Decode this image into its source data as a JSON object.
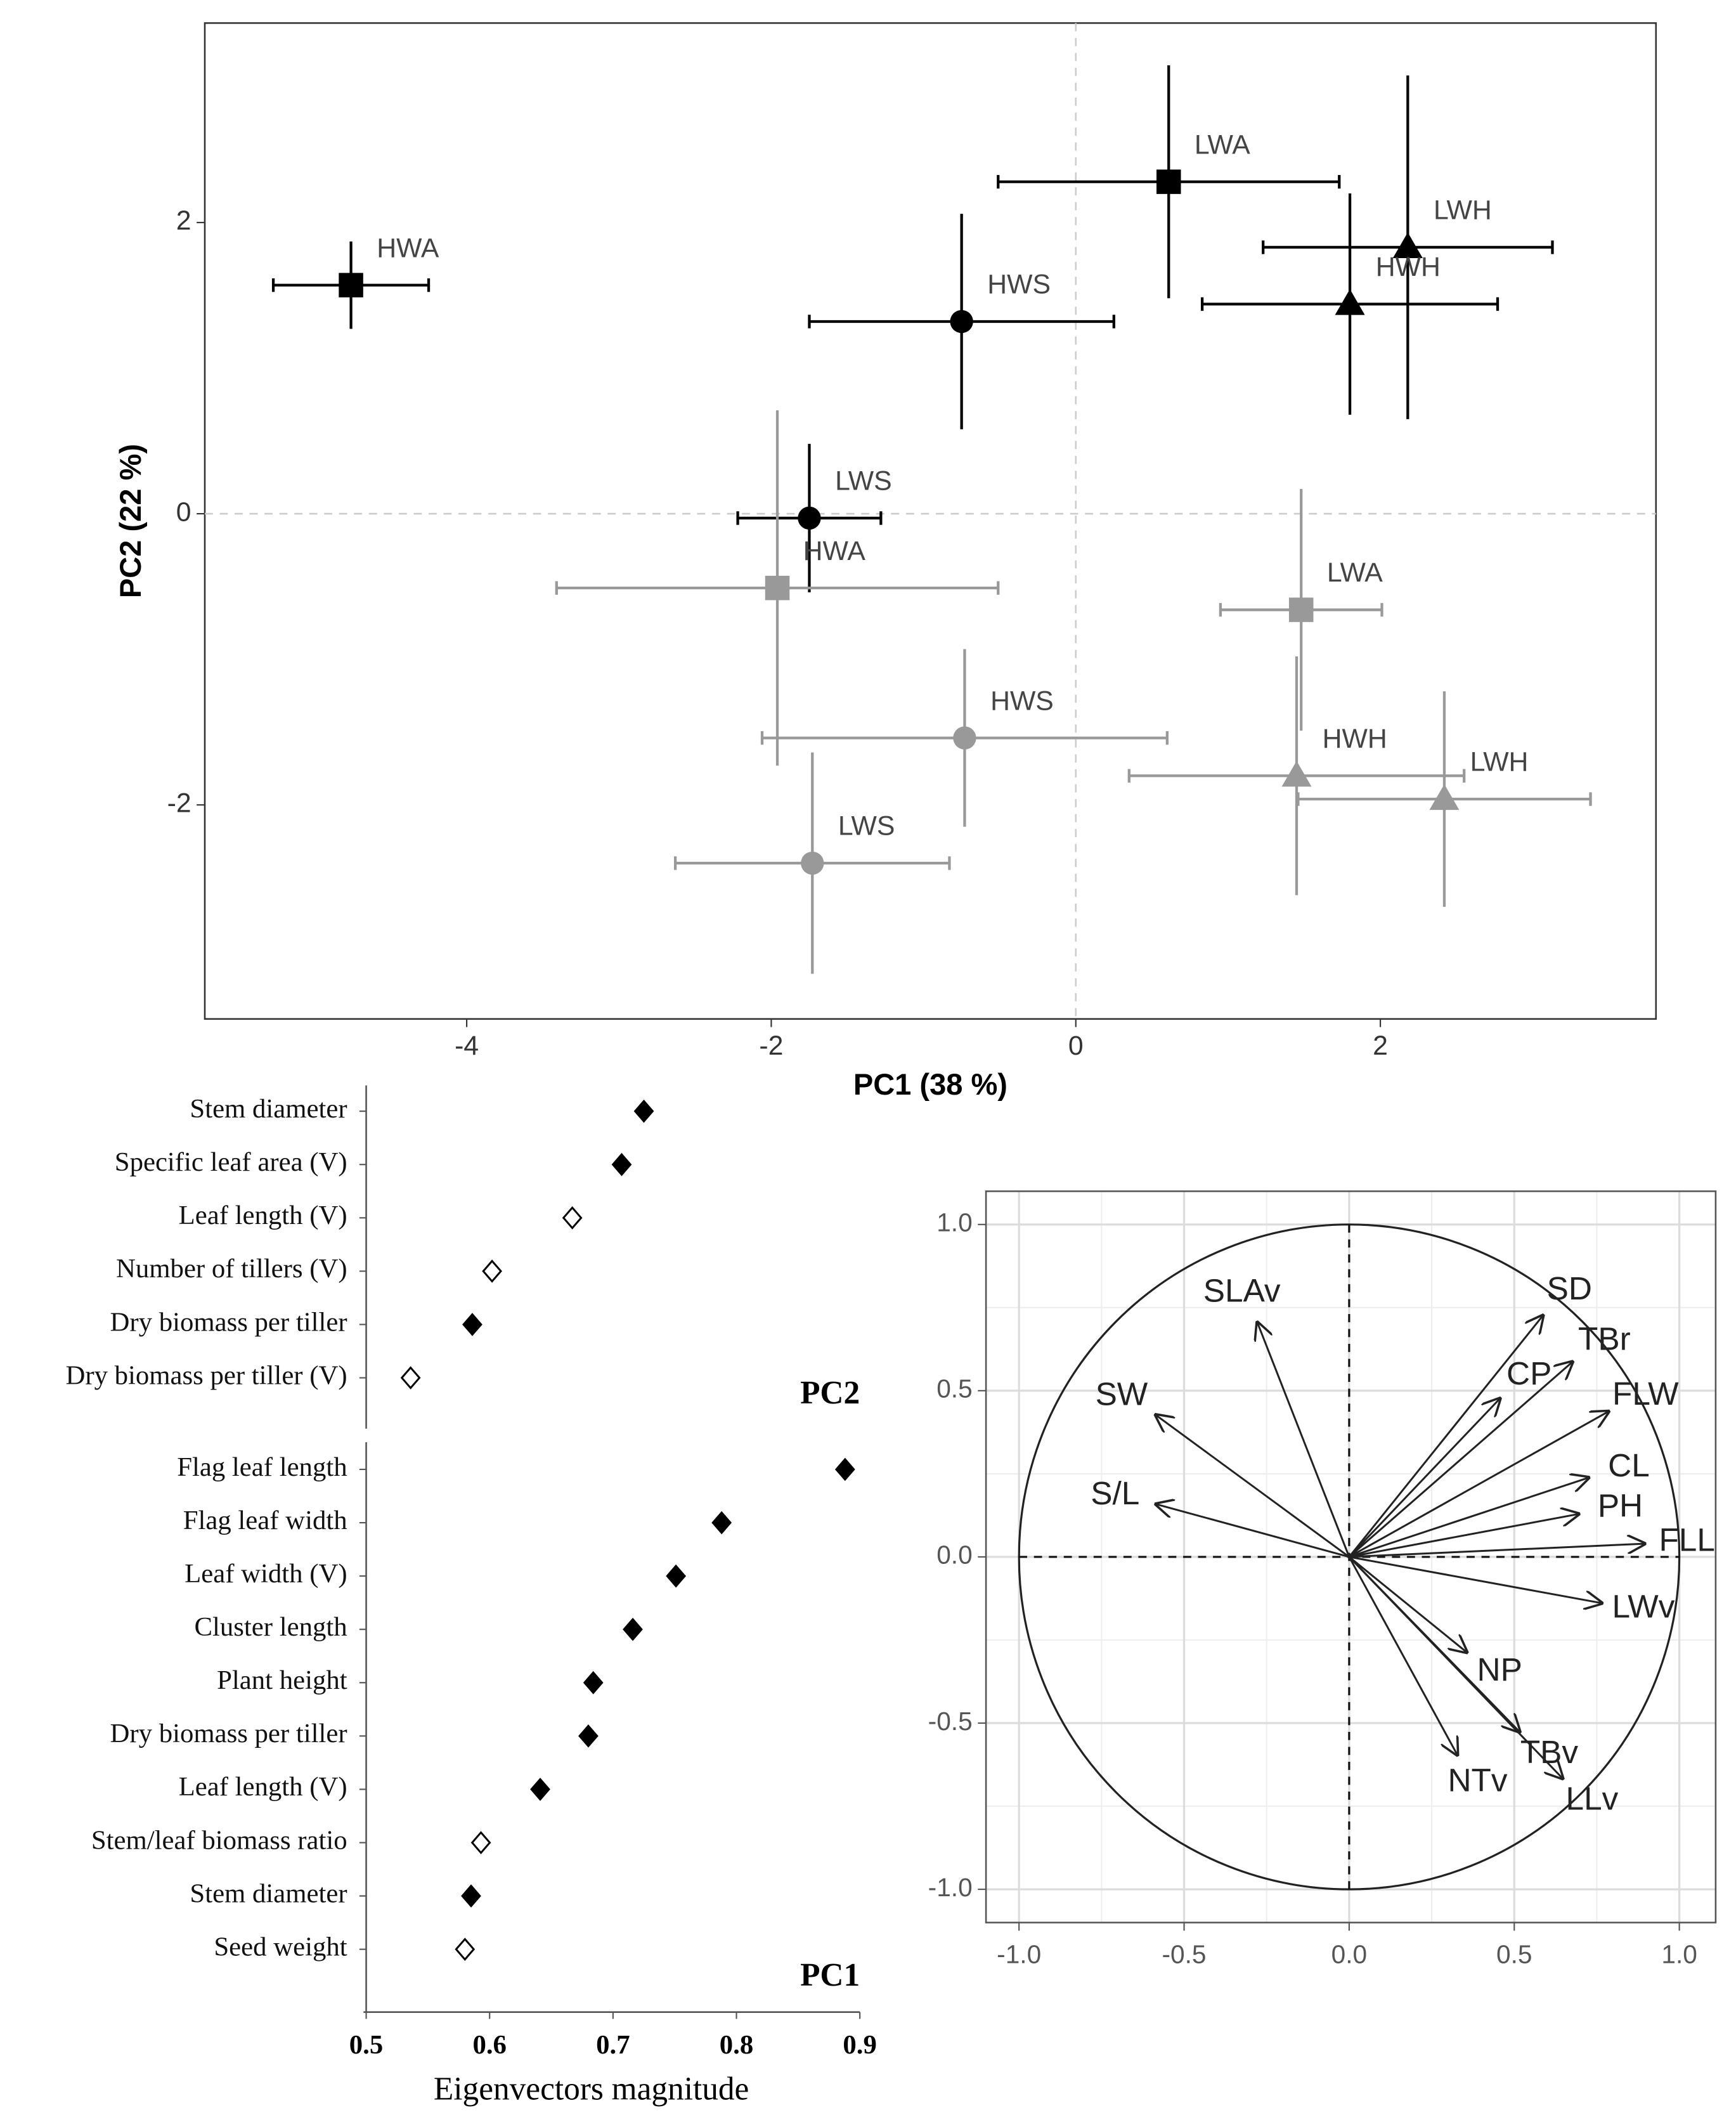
{
  "chart_data": [
    {
      "type": "scatter",
      "xlabel": "PC1 (38 %)",
      "ylabel": "PC2 (22 %)",
      "xlim": [
        -5.72,
        3.81
      ],
      "ylim": [
        -3.47,
        3.37
      ],
      "xticks": [
        -4,
        -2,
        0,
        2
      ],
      "yticks": [
        -2,
        0,
        2
      ],
      "vline": 0,
      "hline": 0,
      "series": [
        {
          "color": "#000000",
          "points": [
            {
              "label": "HWA",
              "shape": "square",
              "x": -4.76,
              "y": 1.57,
              "xerr": 0.51,
              "yerr": 0.3
            },
            {
              "label": "HWS",
              "shape": "circle",
              "x": -0.75,
              "y": 1.32,
              "xerr": 1.0,
              "yerr": 0.74
            },
            {
              "label": "LWA",
              "shape": "square",
              "x": 0.61,
              "y": 2.28,
              "xerr": 1.12,
              "yerr": 0.8
            },
            {
              "label": "LWH",
              "shape": "triangle",
              "x": 2.18,
              "y": 1.83,
              "xerr": 0.95,
              "yerr": 1.18
            },
            {
              "label": "HWH",
              "shape": "triangle",
              "x": 1.8,
              "y": 1.44,
              "xerr": 0.97,
              "yerr": 0.76
            },
            {
              "label": "LWS",
              "shape": "circle",
              "x": -1.75,
              "y": -0.03,
              "xerr": 0.47,
              "yerr": 0.51
            }
          ]
        },
        {
          "color": "#999999",
          "points": [
            {
              "label": "HWA",
              "shape": "square",
              "x": -1.96,
              "y": -0.51,
              "xerr": 1.45,
              "yerr": 1.22
            },
            {
              "label": "LWA",
              "shape": "square",
              "x": 1.48,
              "y": -0.66,
              "xerr": 0.53,
              "yerr": 0.83
            },
            {
              "label": "HWS",
              "shape": "circle",
              "x": -0.73,
              "y": -1.54,
              "xerr": 1.33,
              "yerr": 0.61
            },
            {
              "label": "HWH",
              "shape": "triangle",
              "x": 1.45,
              "y": -1.8,
              "xerr": 1.1,
              "yerr": 0.82
            },
            {
              "label": "LWH",
              "shape": "triangle",
              "x": 2.42,
              "y": -1.96,
              "xerr": 0.96,
              "yerr": 0.74
            },
            {
              "label": "LWS",
              "shape": "circle",
              "x": -1.73,
              "y": -2.4,
              "xerr": 0.9,
              "yerr": 0.76
            }
          ]
        }
      ]
    },
    {
      "type": "dot",
      "xlabel": "Eigenvectors magnitude",
      "xlim": [
        0.5,
        0.9
      ],
      "xticks": [
        0.5,
        0.6,
        0.7,
        0.8,
        0.9
      ],
      "panels": [
        {
          "label": "PC2",
          "categories": [
            "Stem diameter",
            "Specific leaf area (V)",
            "Leaf length (V)",
            "Number of tillers (V)",
            "Dry biomass per tiller",
            "Dry biomass per tiller (V)"
          ],
          "values": [
            0.725,
            0.707,
            0.667,
            0.602,
            0.586,
            0.536
          ],
          "filled": [
            true,
            true,
            false,
            false,
            true,
            false
          ]
        },
        {
          "label": "PC1",
          "categories": [
            "Flag leaf length",
            "Flag leaf width",
            "Leaf width (V)",
            "Cluster length",
            "Plant height",
            "Dry biomass per tiller",
            "Leaf length (V)",
            "Stem/leaf biomass ratio",
            "Stem diameter",
            "Seed weight"
          ],
          "values": [
            0.888,
            0.788,
            0.751,
            0.716,
            0.684,
            0.68,
            0.641,
            0.593,
            0.585,
            0.58
          ],
          "filled": [
            true,
            true,
            true,
            true,
            true,
            true,
            true,
            false,
            true,
            false
          ]
        }
      ]
    },
    {
      "type": "arrows",
      "xlim": [
        -1.1,
        1.11
      ],
      "ylim": [
        -1.1,
        1.1
      ],
      "xticks": [
        {
          "value": -1,
          "label": "-1.0"
        },
        {
          "value": -0.5,
          "label": "-0.5"
        },
        {
          "value": 0,
          "label": "0.0"
        },
        {
          "value": 0.5,
          "label": "0.5"
        },
        {
          "value": 1,
          "label": "1.0"
        }
      ],
      "yticks": [
        {
          "value": -1,
          "label": "-1.0"
        },
        {
          "value": -0.5,
          "label": "-0.5"
        },
        {
          "value": 0,
          "label": "0.0"
        },
        {
          "value": 0.5,
          "label": "0.5"
        },
        {
          "value": 1,
          "label": "1.0"
        }
      ],
      "circle": 1,
      "vline": 0,
      "hline": 0,
      "grid": true,
      "arrows": [
        {
          "label": "SD",
          "x": 0.59,
          "y": 0.73
        },
        {
          "label": "TBr",
          "x": 0.68,
          "y": 0.59
        },
        {
          "label": "FLW",
          "x": 0.79,
          "y": 0.44
        },
        {
          "label": "CP",
          "x": 0.46,
          "y": 0.48
        },
        {
          "label": "CL",
          "x": 0.73,
          "y": 0.24
        },
        {
          "label": "PH",
          "x": 0.7,
          "y": 0.13
        },
        {
          "label": "FLL",
          "x": 0.9,
          "y": 0.04
        },
        {
          "label": "SLAv",
          "x": -0.28,
          "y": 0.71
        },
        {
          "label": "SW",
          "x": -0.59,
          "y": 0.43
        },
        {
          "label": "S/L",
          "x": -0.59,
          "y": 0.16
        },
        {
          "label": "LWv",
          "x": 0.77,
          "y": -0.14
        },
        {
          "label": "NP",
          "x": 0.36,
          "y": -0.29
        },
        {
          "label": "TBv",
          "x": 0.52,
          "y": -0.53
        },
        {
          "label": "NTv",
          "x": 0.33,
          "y": -0.6
        },
        {
          "label": "LLv",
          "x": 0.65,
          "y": -0.67
        }
      ]
    }
  ]
}
